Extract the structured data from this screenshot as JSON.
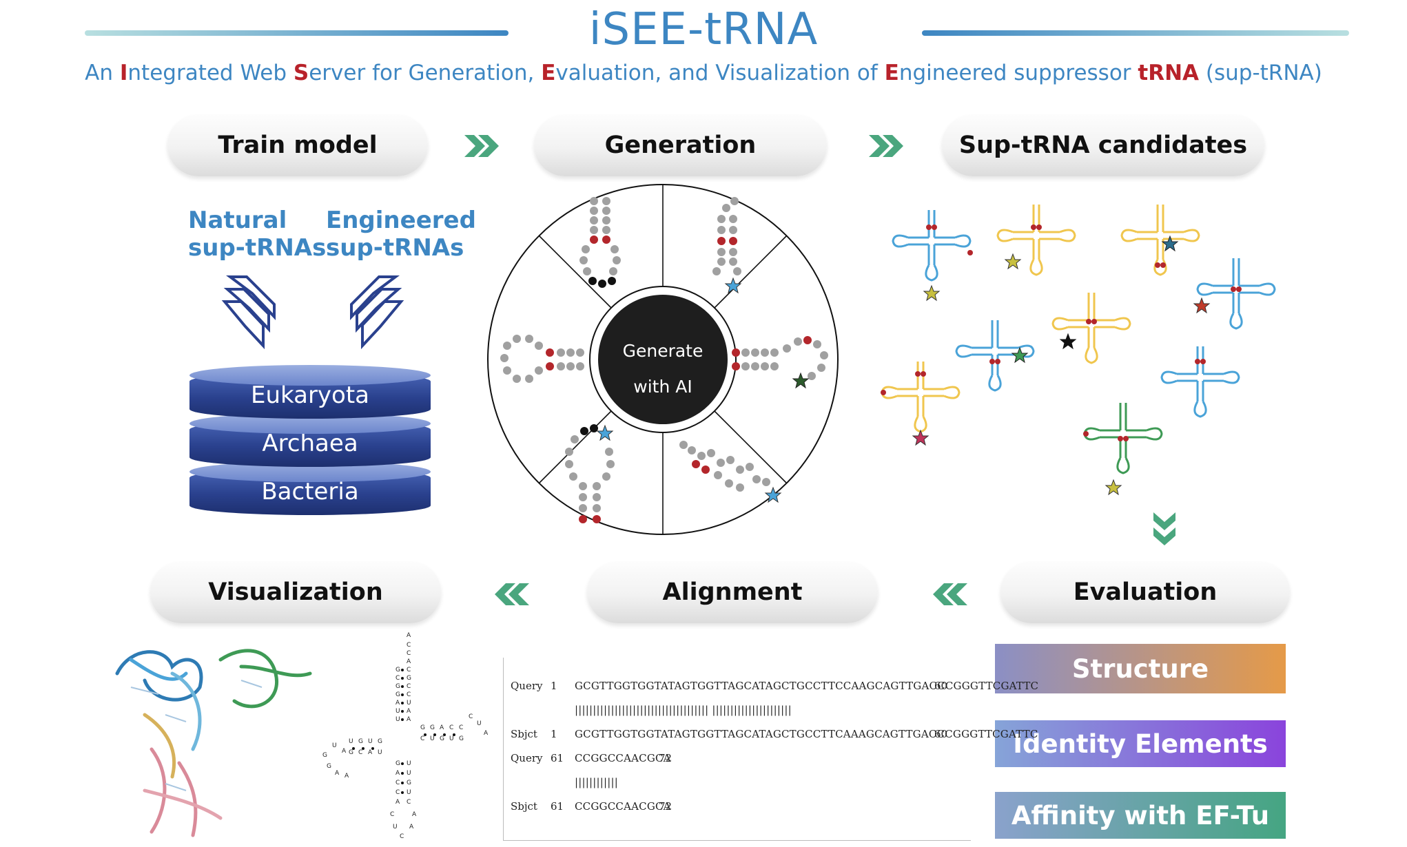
{
  "title": "iSEE-tRNA",
  "subtitle": {
    "p1": "An ",
    "i": "I",
    "p2": "ntegrated Web ",
    "s": "S",
    "p3": "erver for Generation, ",
    "e1": "E",
    "p4": "valuation, and Visualization of ",
    "e2": "E",
    "p5": "ngineered suppressor ",
    "trna": "tRNA",
    "p6": " (sup-tRNA)"
  },
  "steps": {
    "train": "Train model",
    "generation": "Generation",
    "candidates": "Sup-tRNA candidates",
    "evaluation": "Evaluation",
    "alignment": "Alignment",
    "visualization": "Visualization"
  },
  "sources": {
    "natural": [
      "Natural",
      "sup-tRNAs"
    ],
    "engineered": [
      "Engineered",
      "sup-tRNAs"
    ]
  },
  "databases": [
    "Eukaryota",
    "Archaea",
    "Bacteria"
  ],
  "generator": {
    "line1": "Generate",
    "line2": "with AI"
  },
  "evaluation_items": [
    "Structure",
    "Identity Elements",
    "Affinity with EF-Tu"
  ],
  "alignment": {
    "rows": [
      {
        "label": "Query",
        "start": "1",
        "seq": "GCGTTGGTGGTATAGTGGTTAGCATAGCTGCCTTCCAAGCAGTTGACCCGGGTTCGATTC",
        "end": "60"
      },
      {
        "label": "",
        "start": "",
        "seq": "||||||||||||||||||||||||||||||||||||| ||||||||||||||||||||||",
        "end": ""
      },
      {
        "label": "Sbjct",
        "start": "1",
        "seq": "GCGTTGGTGGTATAGTGGTTAGCATAGCTGCCTTCAAAGCAGTTGACCCGGGTTCGATTC",
        "end": "60"
      },
      {
        "label": "Query",
        "start": "61",
        "seq": "CCGGCCAACGCA",
        "end": "72"
      },
      {
        "label": "",
        "start": "",
        "seq": "||||||||||||",
        "end": ""
      },
      {
        "label": "Sbjct",
        "start": "61",
        "seq": "CCGGCCAACGCA",
        "end": "72"
      }
    ]
  },
  "colors": {
    "title_blue": "#3d86c2",
    "highlight_red": "#b8222a",
    "arrow_green": "#4aa67e",
    "db_navy": "#2a418e",
    "trna_blue": "#4aa3d8",
    "trna_yellow": "#f0c64e",
    "trna_green": "#3e9a55",
    "node_red": "#b3262b"
  },
  "icons": [
    "double-chevron-right-icon",
    "double-chevron-down-icon",
    "double-chevron-left-icon",
    "star-icon"
  ]
}
